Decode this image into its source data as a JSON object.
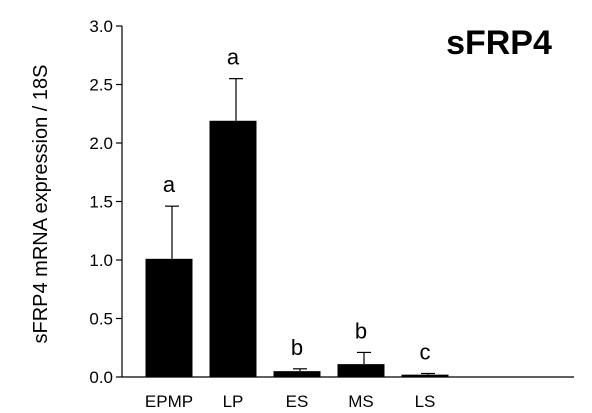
{
  "chart_data": {
    "type": "bar",
    "title": "sFRP4",
    "ylabel": "sFRP4 mRNA expression / 18S",
    "xlabel": "",
    "categories": [
      "EPMP",
      "LP",
      "ES",
      "MS",
      "LS"
    ],
    "values": [
      1.01,
      2.19,
      0.05,
      0.11,
      0.02
    ],
    "error_upper": [
      1.46,
      2.55,
      0.07,
      0.21,
      0.03
    ],
    "significance_labels": [
      "a",
      "a",
      "b",
      "b",
      "c"
    ],
    "ylim": [
      0,
      3.0
    ],
    "yticks": [
      "0.0",
      "0.5",
      "1.0",
      "1.5",
      "2.0",
      "2.5",
      "3.0"
    ],
    "grid": false,
    "legend": "none",
    "bar_color": "#000000"
  }
}
